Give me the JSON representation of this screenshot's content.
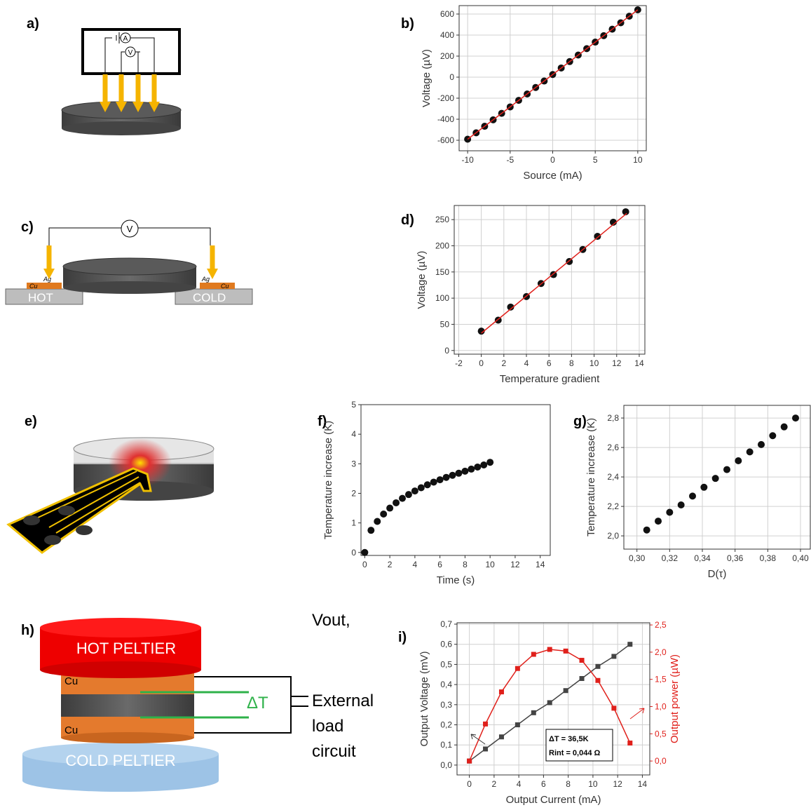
{
  "panel_labels": [
    "a)",
    "b)",
    "c)",
    "d)",
    "e)",
    "f)",
    "g)",
    "h)",
    "i)"
  ],
  "diagrams": {
    "a": {
      "ammeter": "A",
      "voltmeter": "V"
    },
    "c": {
      "voltmeter": "V",
      "hot": "HOT",
      "cold": "COLD",
      "cu_left": "Cu",
      "ag_left": "Ag",
      "ag_right": "Ag",
      "cu_right": "Cu"
    },
    "h": {
      "hot_peltier": "HOT PELTIER",
      "cold_peltier": "COLD PELTIER",
      "cu_top": "Cu",
      "cu_bottom": "Cu",
      "delta_t": "ΔT",
      "circuit": [
        "Vout,",
        "External",
        "load",
        "circuit"
      ]
    }
  },
  "chart_data": [
    {
      "type": "scatter",
      "x_label": "Source (mA)",
      "y_label": "Voltage (µV)",
      "xlim": [
        -11,
        11
      ],
      "ylim": [
        -700,
        680
      ],
      "xticks": [
        -10,
        -5,
        0,
        5,
        10
      ],
      "yticks": [
        -600,
        -400,
        -200,
        0,
        200,
        400,
        600
      ],
      "grid": true,
      "series": [
        {
          "mode": "markers",
          "color": "#111111",
          "x": [
            -10,
            -9,
            -8,
            -7,
            -6,
            -5,
            -4,
            -3,
            -2,
            -1,
            0,
            1,
            2,
            3,
            4,
            5,
            6,
            7,
            8,
            9,
            10
          ],
          "values": [
            -590,
            -529,
            -467,
            -406,
            -344,
            -283,
            -221,
            -160,
            -98,
            -37,
            25,
            87,
            148,
            210,
            271,
            333,
            394,
            456,
            517,
            579,
            640
          ]
        },
        {
          "mode": "line",
          "color": "#e0201b",
          "x": [
            -10,
            10
          ],
          "values": [
            -590,
            640
          ]
        }
      ]
    },
    {
      "type": "scatter",
      "x_label": "Temperature gradient",
      "y_label": "Voltage (µV)",
      "xlim": [
        -2.4,
        14.5
      ],
      "ylim": [
        -7,
        277
      ],
      "xticks": [
        -2,
        0,
        2,
        4,
        6,
        8,
        10,
        12,
        14
      ],
      "yticks": [
        0,
        50,
        100,
        150,
        200,
        250
      ],
      "grid": true,
      "series": [
        {
          "mode": "markers",
          "color": "#111111",
          "x": [
            0,
            1.5,
            2.6,
            4,
            5.3,
            6.4,
            7.8,
            9,
            10.3,
            11.7,
            12.8
          ],
          "values": [
            37,
            58,
            83,
            103,
            128,
            145,
            170,
            193,
            218,
            245,
            265
          ]
        },
        {
          "mode": "line",
          "color": "#e0201b",
          "x": [
            0,
            12.9
          ],
          "values": [
            33,
            262
          ]
        }
      ]
    },
    {
      "type": "scatter",
      "x_label": "Time (s)",
      "y_label": "Temperature increase (K)",
      "xlim": [
        -0.3,
        14.8
      ],
      "ylim": [
        -0.1,
        5
      ],
      "xticks": [
        0,
        2,
        4,
        6,
        8,
        10,
        12,
        14
      ],
      "yticks": [
        0,
        1,
        2,
        3,
        4,
        5
      ],
      "grid": false,
      "series": [
        {
          "mode": "markers",
          "color": "#111111",
          "x": [
            0,
            0.5,
            1,
            1.5,
            2,
            2.5,
            3,
            3.5,
            4,
            4.5,
            5,
            5.5,
            6,
            6.5,
            7,
            7.5,
            8,
            8.5,
            9,
            9.5,
            10
          ],
          "values": [
            0,
            0.75,
            1.05,
            1.3,
            1.5,
            1.68,
            1.83,
            1.96,
            2.08,
            2.19,
            2.29,
            2.38,
            2.46,
            2.54,
            2.61,
            2.68,
            2.75,
            2.82,
            2.89,
            2.96,
            3.05
          ]
        }
      ]
    },
    {
      "type": "scatter",
      "x_label": "D(τ)",
      "y_label": "Temperature increase (K)",
      "xlim": [
        0.292,
        0.406
      ],
      "ylim": [
        1.91,
        2.886
      ],
      "xticks": [
        {
          "value": 0.3,
          "label": "0,30"
        },
        {
          "value": 0.32,
          "label": "0,32"
        },
        {
          "value": 0.34,
          "label": "0,34"
        },
        {
          "value": 0.36,
          "label": "0,36"
        },
        {
          "value": 0.38,
          "label": "0,38"
        },
        {
          "value": 0.4,
          "label": "0,40"
        }
      ],
      "yticks": [
        {
          "value": 2,
          "label": "2,0"
        },
        {
          "value": 2.2,
          "label": "2,2"
        },
        {
          "value": 2.4,
          "label": "2,4"
        },
        {
          "value": 2.6,
          "label": "2,6"
        },
        {
          "value": 2.8,
          "label": "2,8"
        }
      ],
      "grid": true,
      "series": [
        {
          "mode": "markers",
          "color": "#111111",
          "x": [
            0.306,
            0.313,
            0.32,
            0.327,
            0.334,
            0.341,
            0.348,
            0.355,
            0.362,
            0.369,
            0.376,
            0.383,
            0.39,
            0.397
          ],
          "values": [
            2.04,
            2.1,
            2.16,
            2.21,
            2.27,
            2.33,
            2.39,
            2.45,
            2.51,
            2.57,
            2.62,
            2.68,
            2.74,
            2.8
          ]
        }
      ]
    },
    {
      "type": "line",
      "x_label": "Output Current (mA)",
      "y_label": "Output Voltage (mV)",
      "y2_label": "Output power (µW)",
      "xlim": [
        -1,
        14.6
      ],
      "ylim": [
        -0.049,
        0.707
      ],
      "y2lim": [
        -0.256,
        2.54
      ],
      "grid": true,
      "xticks": [
        0,
        2,
        4,
        6,
        8,
        10,
        12,
        14
      ],
      "yticks": [
        {
          "value": 0,
          "label": "0,0"
        },
        {
          "value": 0.1,
          "label": "0,1"
        },
        {
          "value": 0.2,
          "label": "0,2"
        },
        {
          "value": 0.3,
          "label": "0,3"
        },
        {
          "value": 0.4,
          "label": "0,4"
        },
        {
          "value": 0.5,
          "label": "0,5"
        },
        {
          "value": 0.6,
          "label": "0,6"
        },
        {
          "value": 0.7,
          "label": "0,7"
        }
      ],
      "y2ticks": [
        {
          "value": 0,
          "label": "0,0"
        },
        {
          "value": 0.5,
          "label": "0,5"
        },
        {
          "value": 1,
          "label": "1,0"
        },
        {
          "value": 1.5,
          "label": "1,5"
        },
        {
          "value": 2,
          "label": "2,0"
        },
        {
          "value": 2.5,
          "label": "2,5"
        }
      ],
      "annotations": [
        "ΔT = 36,5K",
        "Rint = 0,044 Ω"
      ],
      "series": [
        {
          "mode": "line+markers",
          "color": "#444444",
          "x": [
            0,
            1.3,
            2.6,
            3.9,
            5.2,
            6.5,
            7.8,
            9.1,
            10.4,
            11.7,
            13
          ],
          "values": [
            0.02,
            0.08,
            0.14,
            0.2,
            0.26,
            0.31,
            0.37,
            0.43,
            0.49,
            0.54,
            0.6
          ]
        },
        {
          "mode": "line+markers",
          "color": "#e0201b",
          "axis": "y2",
          "x": [
            0,
            1.3,
            2.6,
            3.9,
            5.2,
            6.5,
            7.8,
            9.1,
            10.4,
            11.7,
            13
          ],
          "values": [
            0,
            0.68,
            1.27,
            1.7,
            1.96,
            2.05,
            2.02,
            1.85,
            1.48,
            0.97,
            0.33
          ]
        }
      ]
    }
  ]
}
